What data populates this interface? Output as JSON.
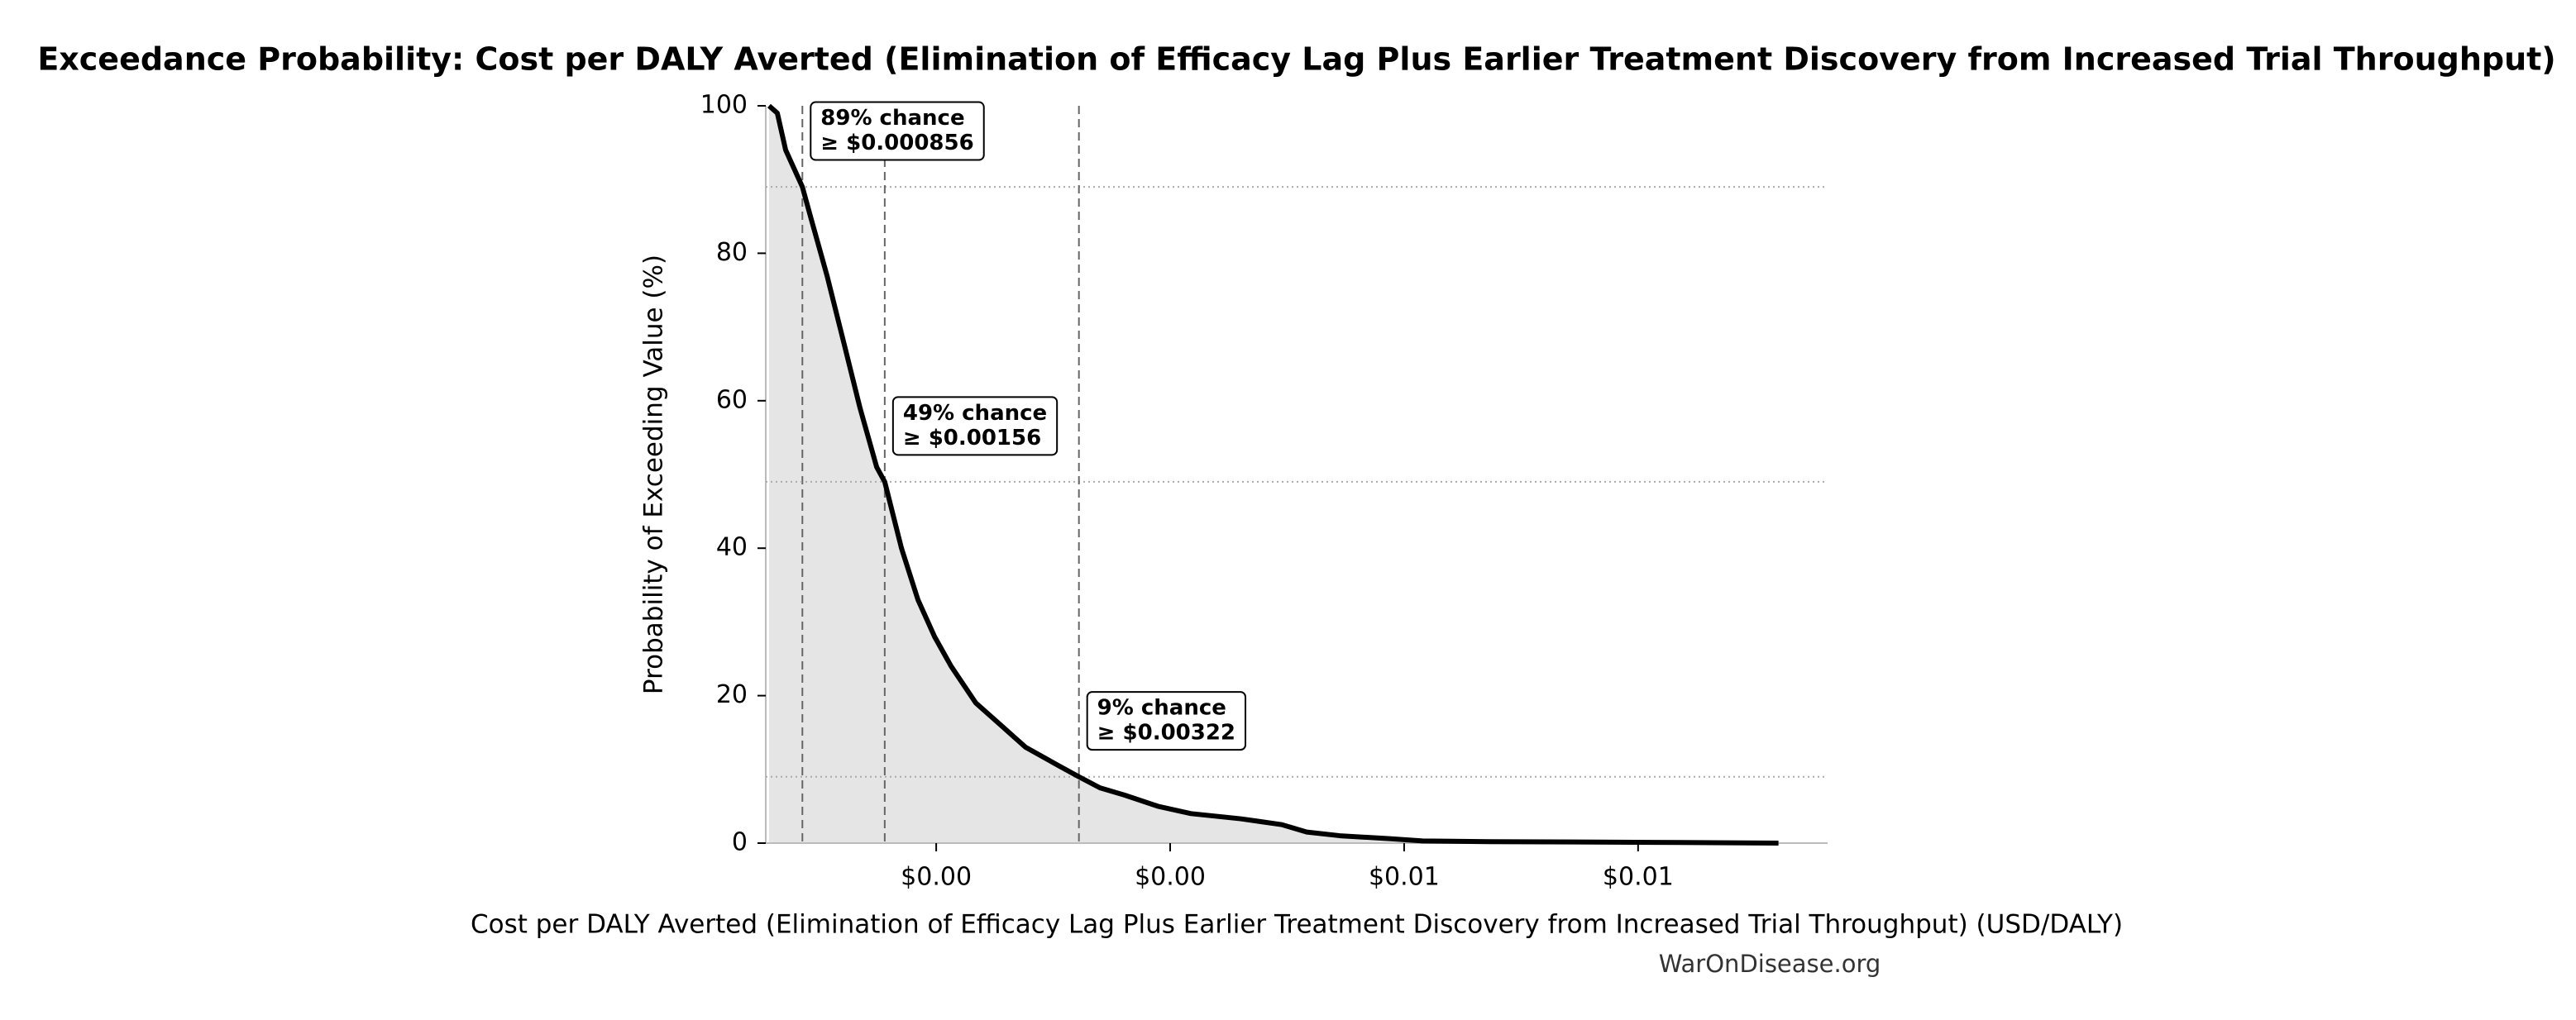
{
  "chart_data": {
    "type": "area",
    "title": "Exceedance Probability: Cost per DALY Averted (Elimination of Efficacy Lag Plus Earlier Treatment Discovery from Increased Trial Throughput)",
    "x_label": "Cost per DALY Averted (Elimination of Efficacy Lag Plus Earlier Treatment Discovery from Increased Trial Throughput) (USD/DALY)",
    "y_label": "Probability of Exceeding Value (%)",
    "watermark": "WarOnDisease.org",
    "x": [
      0.000571,
      0.000642,
      0.000713,
      0.000856,
      0.000925,
      0.001066,
      0.001208,
      0.001349,
      0.001491,
      0.00156,
      0.001703,
      0.001844,
      0.001986,
      0.002127,
      0.002339,
      0.002552,
      0.002764,
      0.003047,
      0.00322,
      0.0034,
      0.003612,
      0.003895,
      0.004178,
      0.004603,
      0.004956,
      0.005168,
      0.005451,
      0.005876,
      0.006159,
      0.006724,
      0.008139,
      0.0092
    ],
    "series": [
      {
        "color": "#000000",
        "fill": "#e5e5e5",
        "values": [
          100,
          99,
          94,
          89,
          85,
          77,
          68,
          59,
          51,
          49,
          40,
          33,
          28,
          24,
          19,
          16,
          13,
          10.5,
          9,
          7.5,
          6.5,
          5,
          4,
          3.3,
          2.5,
          1.5,
          1,
          0.6,
          0.3,
          0.2,
          0.1,
          0
        ]
      }
    ],
    "xlim": [
      0.000543,
      0.00962
    ],
    "xticks": [
      {
        "value": 0.002,
        "label": "$0.00"
      },
      {
        "value": 0.004,
        "label": "$0.00"
      },
      {
        "value": 0.006,
        "label": "$0.01"
      },
      {
        "value": 0.008,
        "label": "$0.01"
      }
    ],
    "ylim": [
      0,
      100
    ],
    "yticks": [
      0,
      20,
      40,
      60,
      80,
      100
    ],
    "annotations": [
      {
        "x": 0.000856,
        "y": 89,
        "text": [
          "89% chance",
          "≥ $0.000856"
        ]
      },
      {
        "x": 0.00156,
        "y": 49,
        "text": [
          "49% chance",
          "≥ $0.00156"
        ]
      },
      {
        "x": 0.00322,
        "y": 9,
        "text": [
          "9% chance",
          "≥ $0.00322"
        ]
      }
    ]
  }
}
